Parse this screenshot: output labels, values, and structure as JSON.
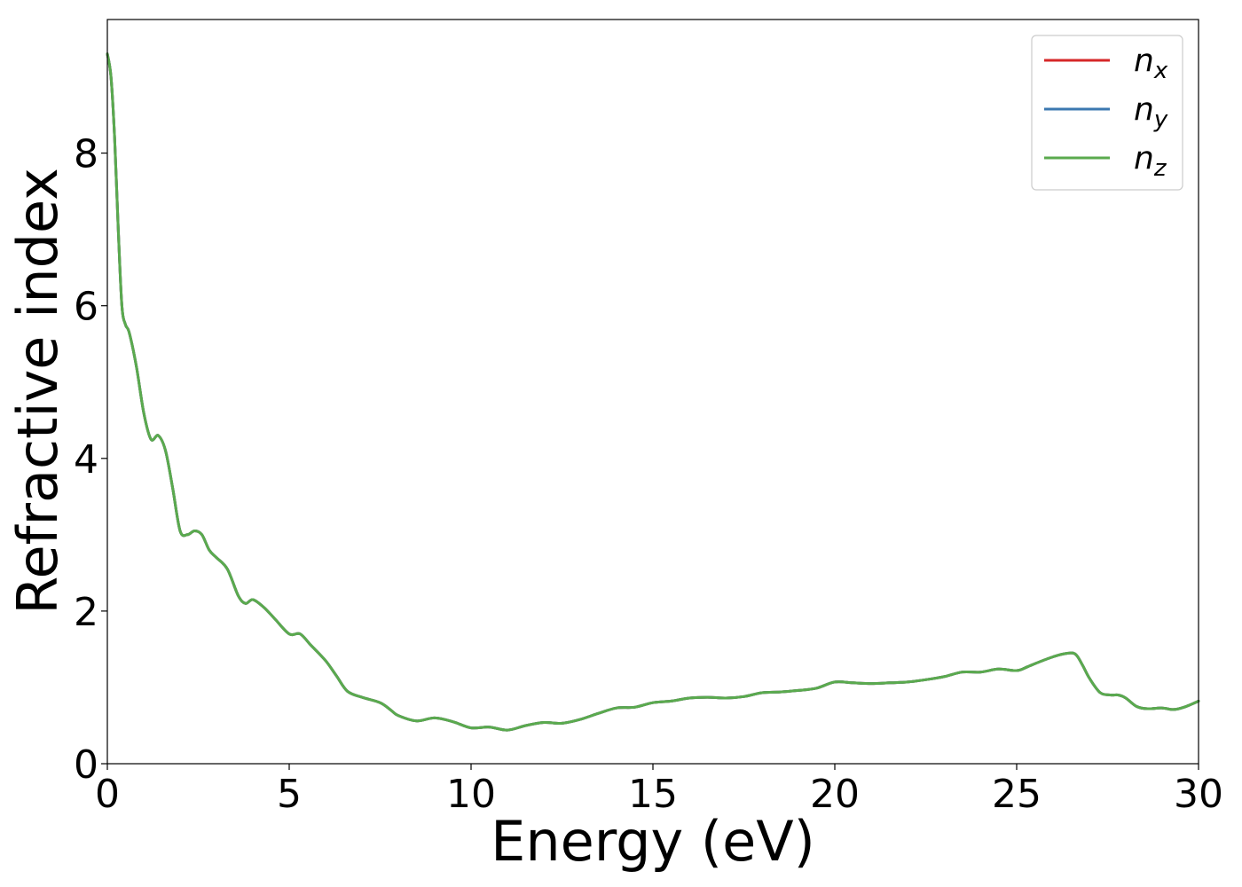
{
  "chart_data": {
    "type": "line",
    "title": "",
    "xlabel": "Energy (eV)",
    "ylabel": "Refractive index",
    "xlim": [
      0,
      30
    ],
    "ylim": [
      0,
      9.75
    ],
    "xticks": [
      0,
      5,
      10,
      15,
      20,
      25,
      30
    ],
    "yticks": [
      0,
      2,
      4,
      6,
      8
    ],
    "grid": false,
    "legend_position": "top-right",
    "series": [
      {
        "name": "n",
        "subscript": "x",
        "color": "#d62728",
        "x": [
          0,
          0.1,
          0.2,
          0.3,
          0.4,
          0.5,
          0.6,
          0.8,
          1.0,
          1.2,
          1.4,
          1.6,
          1.8,
          2.0,
          2.2,
          2.4,
          2.6,
          2.8,
          3.0,
          3.3,
          3.6,
          3.8,
          4.0,
          4.3,
          4.6,
          5.0,
          5.3,
          5.6,
          6.0,
          6.3,
          6.6,
          7.0,
          7.5,
          7.8,
          8.0,
          8.5,
          9.0,
          9.5,
          10.0,
          10.5,
          11.0,
          11.5,
          12.0,
          12.5,
          13.0,
          13.5,
          14.0,
          14.5,
          15.0,
          15.5,
          16.0,
          16.5,
          17.0,
          17.5,
          18.0,
          18.5,
          19.0,
          19.5,
          20.0,
          20.5,
          21.0,
          21.5,
          22.0,
          22.5,
          23.0,
          23.5,
          24.0,
          24.5,
          25.0,
          25.3,
          25.6,
          26.0,
          26.3,
          26.6,
          26.8,
          27.0,
          27.3,
          27.6,
          27.8,
          28.0,
          28.3,
          28.6,
          29.0,
          29.3,
          29.6,
          30.0
        ],
        "y": [
          9.3,
          9.0,
          8.2,
          7.0,
          6.0,
          5.75,
          5.65,
          5.2,
          4.6,
          4.25,
          4.3,
          4.1,
          3.6,
          3.05,
          3.0,
          3.05,
          3.0,
          2.8,
          2.7,
          2.55,
          2.2,
          2.1,
          2.15,
          2.05,
          1.9,
          1.7,
          1.7,
          1.55,
          1.35,
          1.15,
          0.95,
          0.87,
          0.8,
          0.7,
          0.63,
          0.56,
          0.6,
          0.55,
          0.47,
          0.48,
          0.44,
          0.5,
          0.54,
          0.53,
          0.58,
          0.66,
          0.73,
          0.74,
          0.8,
          0.82,
          0.86,
          0.87,
          0.86,
          0.88,
          0.93,
          0.94,
          0.96,
          0.99,
          1.07,
          1.06,
          1.05,
          1.06,
          1.07,
          1.1,
          1.14,
          1.2,
          1.2,
          1.24,
          1.22,
          1.27,
          1.33,
          1.4,
          1.44,
          1.44,
          1.3,
          1.12,
          0.93,
          0.9,
          0.9,
          0.86,
          0.75,
          0.72,
          0.73,
          0.71,
          0.74,
          0.82
        ]
      },
      {
        "name": "n",
        "subscript": "y",
        "color": "#3b78b0",
        "x": [
          0,
          0.1,
          0.2,
          0.3,
          0.4,
          0.5,
          0.6,
          0.8,
          1.0,
          1.2,
          1.4,
          1.6,
          1.8,
          2.0,
          2.2,
          2.4,
          2.6,
          2.8,
          3.0,
          3.3,
          3.6,
          3.8,
          4.0,
          4.3,
          4.6,
          5.0,
          5.3,
          5.6,
          6.0,
          6.3,
          6.6,
          7.0,
          7.5,
          7.8,
          8.0,
          8.5,
          9.0,
          9.5,
          10.0,
          10.5,
          11.0,
          11.5,
          12.0,
          12.5,
          13.0,
          13.5,
          14.0,
          14.5,
          15.0,
          15.5,
          16.0,
          16.5,
          17.0,
          17.5,
          18.0,
          18.5,
          19.0,
          19.5,
          20.0,
          20.5,
          21.0,
          21.5,
          22.0,
          22.5,
          23.0,
          23.5,
          24.0,
          24.5,
          25.0,
          25.3,
          25.6,
          26.0,
          26.3,
          26.6,
          26.8,
          27.0,
          27.3,
          27.6,
          27.8,
          28.0,
          28.3,
          28.6,
          29.0,
          29.3,
          29.6,
          30.0
        ],
        "y": [
          9.3,
          9.0,
          8.2,
          7.0,
          6.0,
          5.75,
          5.65,
          5.2,
          4.6,
          4.25,
          4.3,
          4.1,
          3.6,
          3.05,
          3.0,
          3.05,
          3.0,
          2.8,
          2.7,
          2.55,
          2.2,
          2.1,
          2.15,
          2.05,
          1.9,
          1.7,
          1.7,
          1.55,
          1.35,
          1.15,
          0.95,
          0.87,
          0.8,
          0.7,
          0.63,
          0.56,
          0.6,
          0.55,
          0.47,
          0.48,
          0.44,
          0.5,
          0.54,
          0.53,
          0.58,
          0.66,
          0.73,
          0.74,
          0.8,
          0.82,
          0.86,
          0.87,
          0.86,
          0.88,
          0.93,
          0.94,
          0.96,
          0.99,
          1.07,
          1.06,
          1.05,
          1.06,
          1.07,
          1.1,
          1.14,
          1.2,
          1.2,
          1.24,
          1.22,
          1.27,
          1.33,
          1.4,
          1.44,
          1.44,
          1.3,
          1.12,
          0.93,
          0.9,
          0.9,
          0.86,
          0.75,
          0.72,
          0.73,
          0.71,
          0.74,
          0.82
        ]
      },
      {
        "name": "n",
        "subscript": "z",
        "color": "#5aaa4e",
        "x": [
          0,
          0.1,
          0.2,
          0.3,
          0.4,
          0.5,
          0.6,
          0.8,
          1.0,
          1.2,
          1.4,
          1.6,
          1.8,
          2.0,
          2.2,
          2.4,
          2.6,
          2.8,
          3.0,
          3.3,
          3.6,
          3.8,
          4.0,
          4.3,
          4.6,
          5.0,
          5.3,
          5.6,
          6.0,
          6.3,
          6.6,
          7.0,
          7.5,
          7.8,
          8.0,
          8.5,
          9.0,
          9.5,
          10.0,
          10.5,
          11.0,
          11.5,
          12.0,
          12.5,
          13.0,
          13.5,
          14.0,
          14.5,
          15.0,
          15.5,
          16.0,
          16.5,
          17.0,
          17.5,
          18.0,
          18.5,
          19.0,
          19.5,
          20.0,
          20.5,
          21.0,
          21.5,
          22.0,
          22.5,
          23.0,
          23.5,
          24.0,
          24.5,
          25.0,
          25.3,
          25.6,
          26.0,
          26.3,
          26.6,
          26.8,
          27.0,
          27.3,
          27.6,
          27.8,
          28.0,
          28.3,
          28.6,
          29.0,
          29.3,
          29.6,
          30.0
        ],
        "y": [
          9.3,
          9.0,
          8.2,
          7.0,
          6.0,
          5.75,
          5.65,
          5.2,
          4.6,
          4.25,
          4.3,
          4.1,
          3.6,
          3.05,
          3.0,
          3.05,
          3.0,
          2.8,
          2.7,
          2.55,
          2.2,
          2.1,
          2.15,
          2.05,
          1.9,
          1.7,
          1.7,
          1.55,
          1.35,
          1.15,
          0.95,
          0.87,
          0.8,
          0.7,
          0.63,
          0.56,
          0.6,
          0.55,
          0.47,
          0.48,
          0.44,
          0.5,
          0.54,
          0.53,
          0.58,
          0.66,
          0.73,
          0.74,
          0.8,
          0.82,
          0.86,
          0.87,
          0.86,
          0.88,
          0.93,
          0.94,
          0.96,
          0.99,
          1.07,
          1.06,
          1.05,
          1.06,
          1.07,
          1.1,
          1.14,
          1.2,
          1.2,
          1.24,
          1.22,
          1.27,
          1.33,
          1.4,
          1.44,
          1.44,
          1.3,
          1.12,
          0.93,
          0.9,
          0.9,
          0.86,
          0.75,
          0.72,
          0.73,
          0.71,
          0.74,
          0.82
        ]
      }
    ]
  }
}
